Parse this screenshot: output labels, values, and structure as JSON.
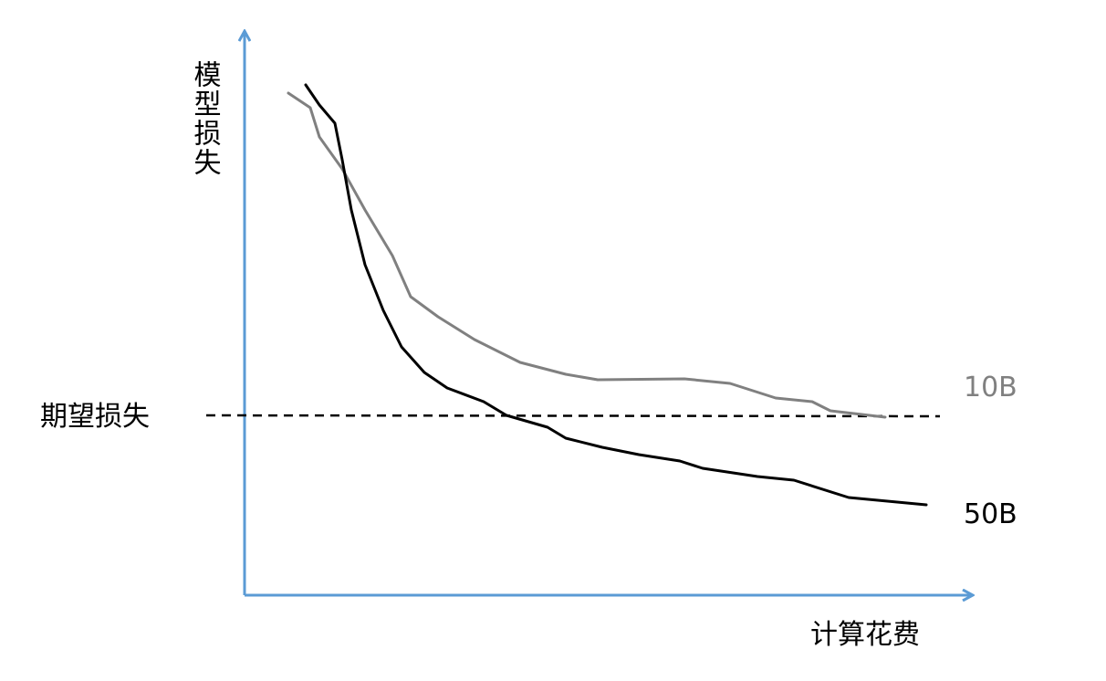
{
  "axes": {
    "y_label": "模型损失",
    "x_label": "计算花费"
  },
  "threshold": {
    "label": "期望损失"
  },
  "curves": [
    {
      "label": "10B"
    },
    {
      "label": "50B"
    }
  ]
}
